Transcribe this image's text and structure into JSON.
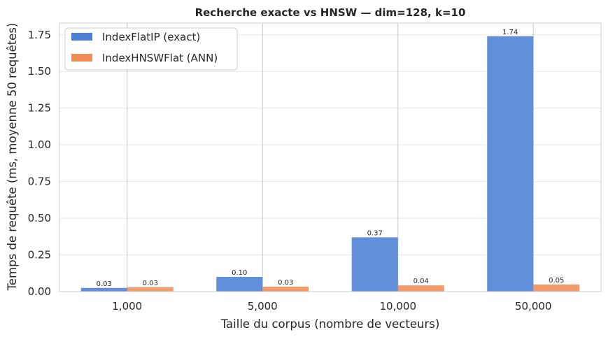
{
  "chart_data": {
    "type": "bar",
    "title": "Recherche exacte vs HNSW — dim=128, k=10",
    "xlabel": "Taille du corpus (nombre de vecteurs)",
    "ylabel": "Temps de requête (ms, moyenne 50 requêtes)",
    "categories": [
      "1,000",
      "5,000",
      "10,000",
      "50,000"
    ],
    "series": [
      {
        "name": "IndexFlatIP (exact)",
        "color": "#4c7fd4",
        "values": [
          0.025,
          0.1,
          0.37,
          1.74
        ],
        "labels": [
          "0.03",
          "0.10",
          "0.37",
          "1.74"
        ]
      },
      {
        "name": "IndexHNSWFlat (ANN)",
        "color": "#f08c55",
        "values": [
          0.029,
          0.033,
          0.042,
          0.048
        ],
        "labels": [
          "0.03",
          "0.03",
          "0.04",
          "0.05"
        ]
      }
    ],
    "ylim": [
      0,
      1.83
    ],
    "yticks": [
      0,
      0.25,
      0.5,
      0.75,
      1.0,
      1.25,
      1.5,
      1.75
    ],
    "ytick_labels": [
      "0.00",
      "0.25",
      "0.50",
      "0.75",
      "1.00",
      "1.25",
      "1.50",
      "1.75"
    ],
    "grid": true,
    "legend_position": "top-left"
  }
}
